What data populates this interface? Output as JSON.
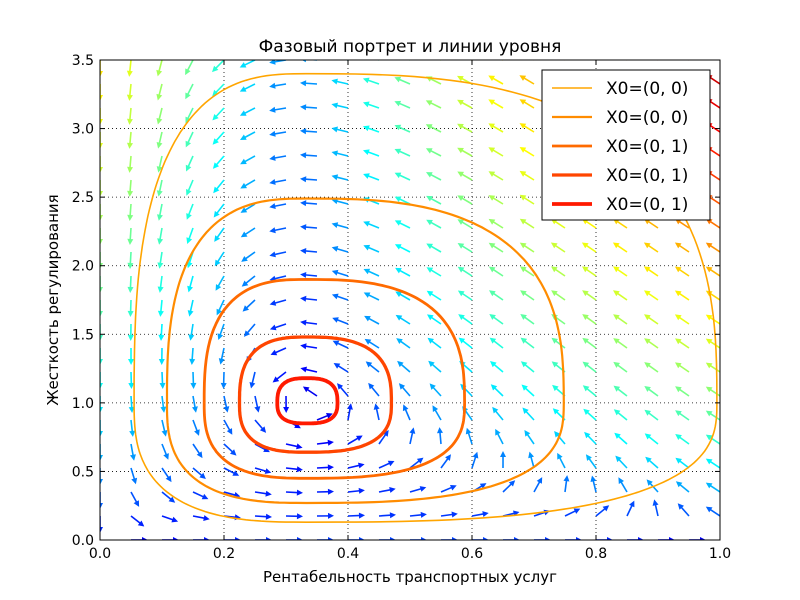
{
  "chart_data": {
    "type": "line",
    "title": "Фазовый портрет и линии уровня",
    "xlabel": "Рентабельность транспортных услуг",
    "ylabel": "Жесткость регулирования",
    "xlim": [
      0.0,
      1.0
    ],
    "ylim": [
      0.0,
      3.5
    ],
    "x_ticks": [
      0.0,
      0.2,
      0.4,
      0.6,
      0.8,
      1.0
    ],
    "y_ticks": [
      0.0,
      0.5,
      1.0,
      1.5,
      2.0,
      2.5,
      3.0,
      3.5
    ],
    "x_tick_labels": [
      "0.0",
      "0.2",
      "0.4",
      "0.6",
      "0.8",
      "1.0"
    ],
    "y_tick_labels": [
      "0.0",
      "0.5",
      "1.0",
      "1.5",
      "2.0",
      "2.5",
      "3.0",
      "3.5"
    ],
    "grid": true,
    "legend_position": "top-right",
    "equilibrium": {
      "x": 0.333,
      "y": 1.0
    },
    "series": [
      {
        "name": "X0=(0, 0)",
        "color": "#ffa500",
        "x_min": 0.055,
        "x_max": 0.995,
        "y_min": 0.13,
        "y_max": 3.4
      },
      {
        "name": "X0=(0, 0)",
        "color": "#ff8c00",
        "x_min": 0.108,
        "x_max": 0.748,
        "y_min": 0.27,
        "y_max": 2.49
      },
      {
        "name": "X0=(0, 1)",
        "color": "#ff6a00",
        "x_min": 0.168,
        "x_max": 0.588,
        "y_min": 0.45,
        "y_max": 1.9
      },
      {
        "name": "X0=(0, 1)",
        "color": "#ff4500",
        "x_min": 0.225,
        "x_max": 0.47,
        "y_min": 0.64,
        "y_max": 1.48
      },
      {
        "name": "X0=(0, 1)",
        "color": "#ff1a00",
        "x_min": 0.286,
        "x_max": 0.383,
        "y_min": 0.85,
        "y_max": 1.18
      }
    ],
    "vector_field": {
      "type": "quiver",
      "colormap": "jet",
      "x_range": [
        0.0,
        1.0
      ],
      "y_range": [
        0.0,
        3.5
      ],
      "x_count": 21,
      "y_count": 21
    }
  }
}
